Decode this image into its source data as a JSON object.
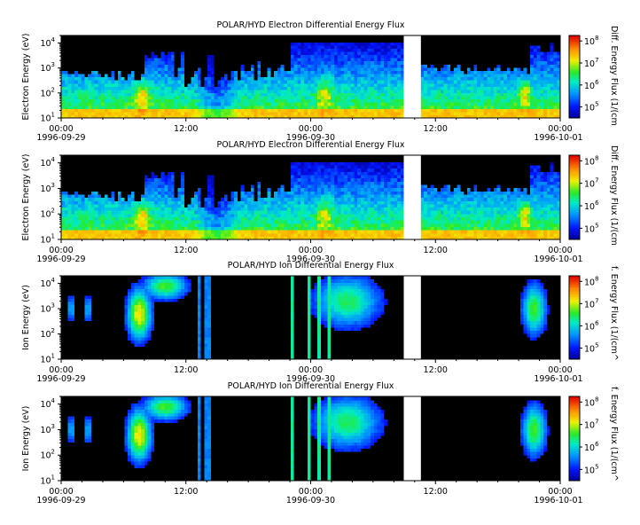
{
  "chart_data": [
    {
      "type": "heatmap",
      "title": "POLAR/HYD  Electron Differential Energy Flux",
      "ylabel": "Electron Energy (eV)",
      "colorbar_label": "Diff. Energy Flux (1/(cm",
      "y_scale": "log",
      "ylim": [
        10,
        20000
      ],
      "y_ticks": [
        {
          "v": 10,
          "e": "1"
        },
        {
          "v": 100,
          "e": "2"
        },
        {
          "v": 1000,
          "e": "3"
        },
        {
          "v": 10000,
          "e": "4"
        }
      ],
      "cbar_scale": "log",
      "cbar_ticks": [
        {
          "v": 100000,
          "e": "5"
        },
        {
          "v": 1000000,
          "e": "6"
        },
        {
          "v": 10000000,
          "e": "7"
        },
        {
          "v": 100000000,
          "e": "8"
        }
      ],
      "x_ticks": [
        "00:00",
        "12:00",
        "00:00",
        "12:00",
        "00:00"
      ],
      "x_tick_hours": [
        0,
        12,
        24,
        36,
        48
      ],
      "x_dates": [
        "1996-09-29",
        "1996-09-30",
        "1996-10-01"
      ],
      "xlim_hours": [
        0,
        48
      ],
      "species": "electron",
      "data_gap_hours": [
        33.0,
        34.6
      ]
    },
    {
      "type": "heatmap",
      "title": "POLAR/HYD  Electron Differential Energy Flux",
      "ylabel": "Electron Energy (eV)",
      "colorbar_label": "Diff. Energy Flux (1/(cm",
      "y_scale": "log",
      "ylim": [
        10,
        20000
      ],
      "y_ticks": [
        {
          "v": 10,
          "e": "1"
        },
        {
          "v": 100,
          "e": "2"
        },
        {
          "v": 1000,
          "e": "3"
        },
        {
          "v": 10000,
          "e": "4"
        }
      ],
      "cbar_scale": "log",
      "cbar_ticks": [
        {
          "v": 100000,
          "e": "5"
        },
        {
          "v": 1000000,
          "e": "6"
        },
        {
          "v": 10000000,
          "e": "7"
        },
        {
          "v": 100000000,
          "e": "8"
        }
      ],
      "x_ticks": [
        "00:00",
        "12:00",
        "00:00",
        "12:00",
        "00:00"
      ],
      "x_tick_hours": [
        0,
        12,
        24,
        36,
        48
      ],
      "x_dates": [
        "1996-09-29",
        "1996-09-30",
        "1996-10-01"
      ],
      "xlim_hours": [
        0,
        48
      ],
      "species": "electron",
      "data_gap_hours": [
        33.0,
        34.6
      ]
    },
    {
      "type": "heatmap",
      "title": "POLAR/HYD  Ion Differential Energy Flux",
      "ylabel": "Ion Energy (eV)",
      "colorbar_label": "f. Energy Flux (1/(cm^",
      "y_scale": "log",
      "ylim": [
        10,
        20000
      ],
      "y_ticks": [
        {
          "v": 10,
          "e": "1"
        },
        {
          "v": 100,
          "e": "2"
        },
        {
          "v": 1000,
          "e": "3"
        },
        {
          "v": 10000,
          "e": "4"
        }
      ],
      "cbar_scale": "log",
      "cbar_ticks": [
        {
          "v": 100000,
          "e": "5"
        },
        {
          "v": 1000000,
          "e": "6"
        },
        {
          "v": 10000000,
          "e": "7"
        },
        {
          "v": 100000000,
          "e": "8"
        }
      ],
      "x_ticks": [
        "00:00",
        "12:00",
        "00:00",
        "12:00",
        "00:00"
      ],
      "x_tick_hours": [
        0,
        12,
        24,
        36,
        48
      ],
      "x_dates": [
        "1996-09-29",
        "1996-09-30",
        "1996-10-01"
      ],
      "xlim_hours": [
        0,
        48
      ],
      "species": "ion",
      "data_gap_hours": [
        33.0,
        34.6
      ]
    },
    {
      "type": "heatmap",
      "title": "POLAR/HYD  Ion Differential Energy Flux",
      "ylabel": "Ion Energy (eV)",
      "colorbar_label": "f. Energy Flux (1/(cm^",
      "y_scale": "log",
      "ylim": [
        10,
        20000
      ],
      "y_ticks": [
        {
          "v": 10,
          "e": "1"
        },
        {
          "v": 100,
          "e": "2"
        },
        {
          "v": 1000,
          "e": "3"
        },
        {
          "v": 10000,
          "e": "4"
        }
      ],
      "cbar_scale": "log",
      "cbar_ticks": [
        {
          "v": 100000,
          "e": "5"
        },
        {
          "v": 1000000,
          "e": "6"
        },
        {
          "v": 10000000,
          "e": "7"
        },
        {
          "v": 100000000,
          "e": "8"
        }
      ],
      "x_ticks": [
        "00:00",
        "12:00",
        "00:00",
        "12:00",
        "00:00"
      ],
      "x_tick_hours": [
        0,
        12,
        24,
        36,
        48
      ],
      "x_dates": [
        "1996-09-29",
        "1996-09-30",
        "1996-10-01"
      ],
      "xlim_hours": [
        0,
        48
      ],
      "species": "ion",
      "data_gap_hours": [
        33.0,
        34.6
      ]
    }
  ]
}
